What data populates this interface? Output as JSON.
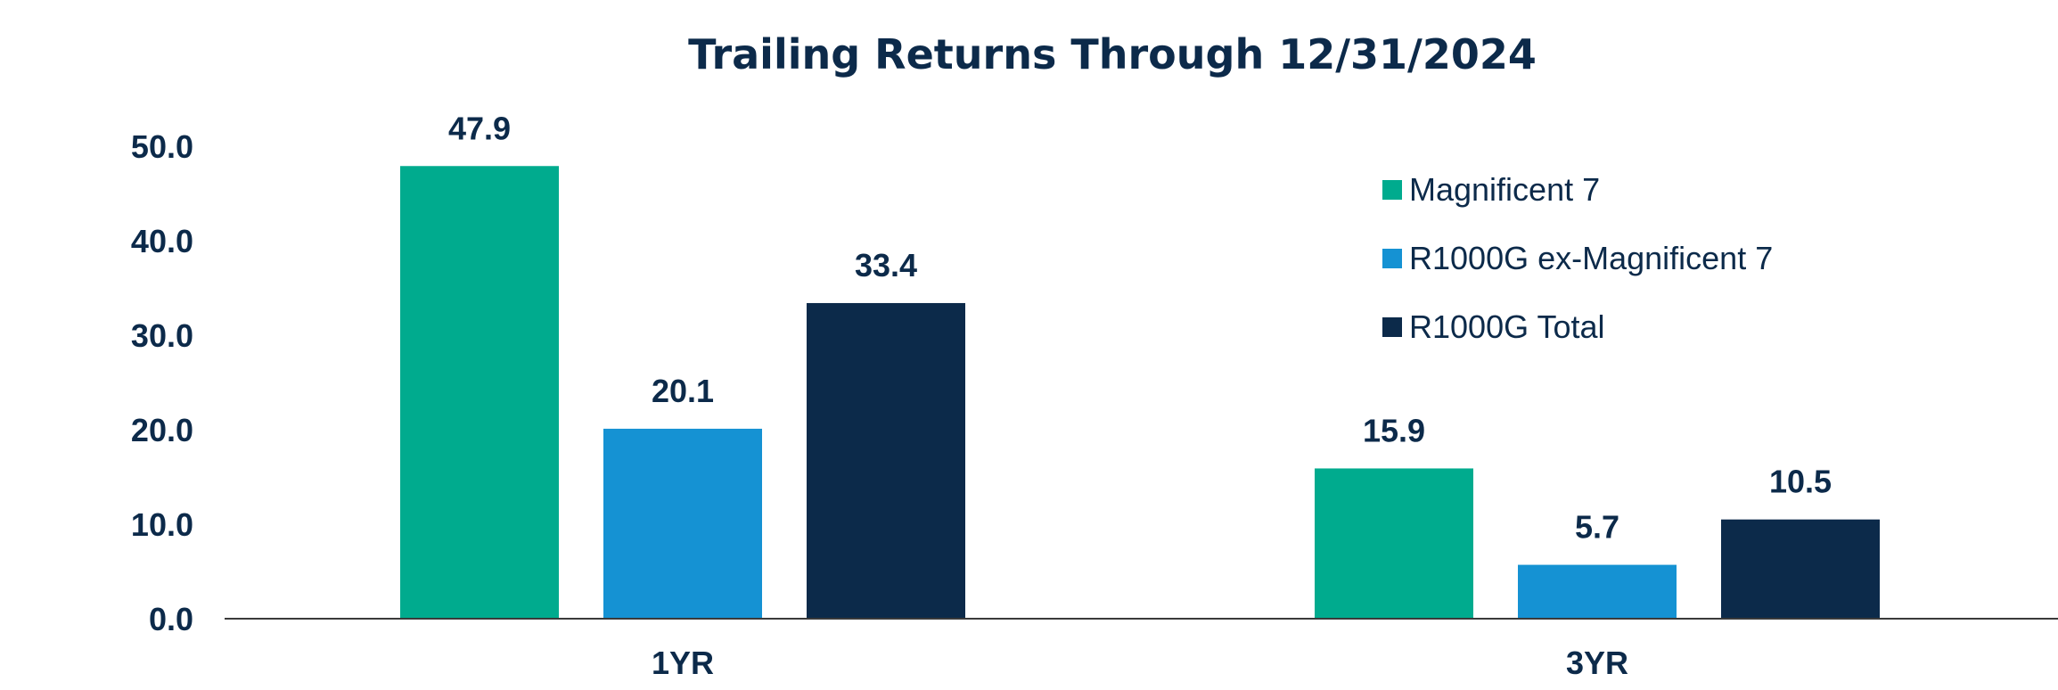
{
  "chart_data": {
    "type": "bar",
    "title": "Trailing Returns Through 12/31/2024",
    "xlabel": "",
    "ylabel": "",
    "categories": [
      "1YR",
      "3YR"
    ],
    "series": [
      {
        "name": "Magnificent 7",
        "values": [
          47.9,
          15.9
        ],
        "color": "#00ab8e"
      },
      {
        "name": "R1000G ex-Magnificent 7",
        "values": [
          20.1,
          5.7
        ],
        "color": "#1592d3"
      },
      {
        "name": "R1000G Total",
        "values": [
          33.4,
          10.5
        ],
        "color": "#0c2a4a"
      }
    ],
    "data_labels": [
      [
        "47.9",
        "15.9"
      ],
      [
        "20.1",
        "5.7"
      ],
      [
        "33.4",
        "10.5"
      ]
    ],
    "ylim": [
      0,
      50
    ],
    "yticks": [
      "0.0",
      "10.0",
      "20.0",
      "30.0",
      "40.0",
      "50.0"
    ],
    "grid": false,
    "legend_position": "top-right"
  }
}
